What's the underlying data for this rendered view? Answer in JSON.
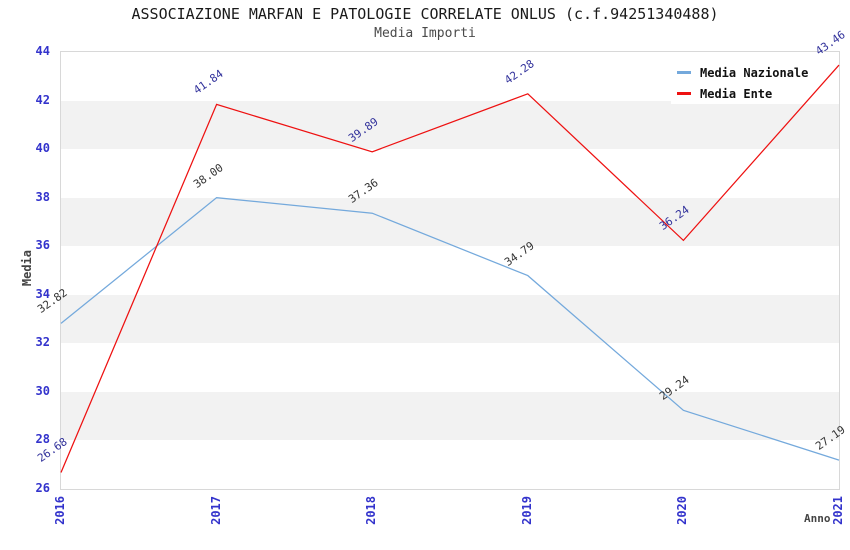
{
  "chart_data": {
    "type": "line",
    "title": "ASSOCIAZIONE MARFAN E PATOLOGIE CORRELATE ONLUS (c.f.94251340488)",
    "subtitle": "Media Importi",
    "xlabel": "Anno",
    "ylabel": "Media",
    "categories": [
      "2016",
      "2017",
      "2018",
      "2019",
      "2020",
      "2021"
    ],
    "series": [
      {
        "name": "Media Nazionale",
        "values": [
          32.82,
          38.0,
          37.36,
          34.79,
          29.24,
          27.19
        ],
        "labels": [
          "32.82",
          "38.00",
          "37.36",
          "34.79",
          "29.24",
          "27.19"
        ],
        "color": "#74a9dc",
        "label_color": "#333333"
      },
      {
        "name": "Media Ente",
        "values": [
          26.68,
          41.84,
          39.89,
          42.28,
          36.24,
          43.46
        ],
        "labels": [
          "26.68",
          "41.84",
          "39.89",
          "42.28",
          "36.24",
          "43.46"
        ],
        "color": "#ee1111",
        "label_color": "#31319b"
      }
    ],
    "ylim": [
      26,
      44
    ],
    "yticks": [
      26,
      28,
      30,
      32,
      34,
      36,
      38,
      40,
      42,
      44
    ],
    "grid": "alternating-horizontal-bands",
    "band_colors": [
      "#ffffff",
      "#f2f2f2"
    ],
    "axis_tick_color": "#3333cc",
    "legend_position": "top-right"
  }
}
